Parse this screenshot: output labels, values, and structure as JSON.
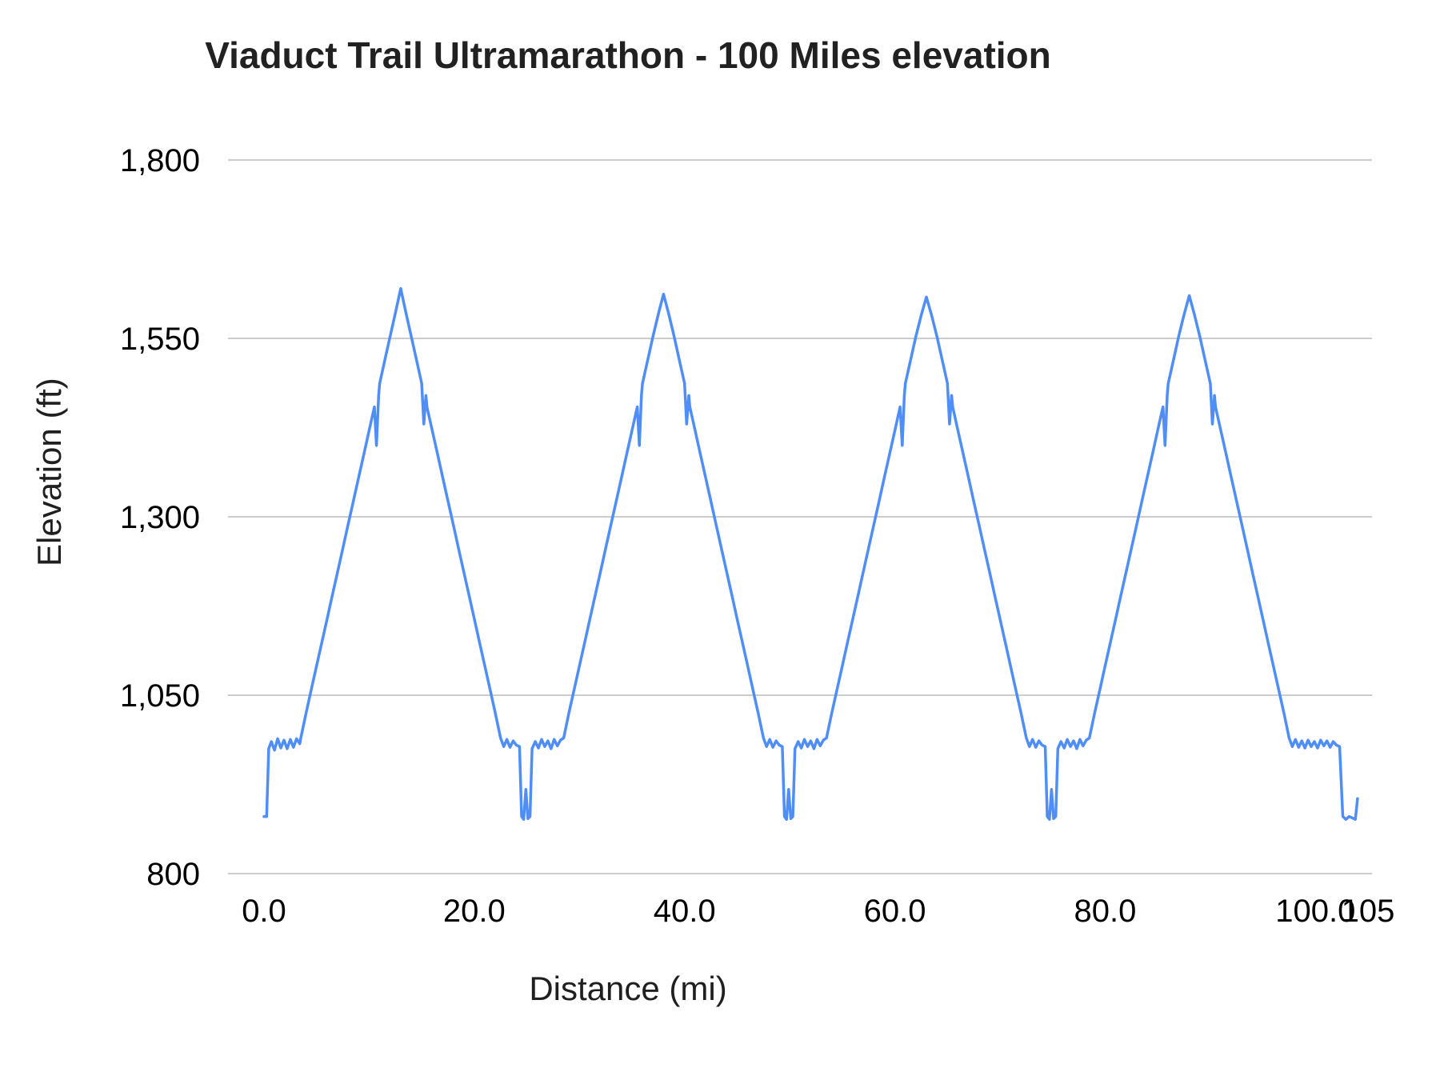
{
  "chart_data": {
    "type": "line",
    "title": "Viaduct Trail Ultramarathon - 100 Miles elevation",
    "xlabel": "Distance (mi)",
    "ylabel": "Elevation (ft)",
    "xlim": [
      0,
      105
    ],
    "ylim": [
      800,
      1800
    ],
    "grid": "horizontal",
    "legend": "none",
    "line_color": "#4f8ef7",
    "gridline_color": "#cccccc",
    "tick_color": "#000000",
    "x_ticks": [
      {
        "value": 0,
        "label": "0.0"
      },
      {
        "value": 20,
        "label": "20.0"
      },
      {
        "value": 40,
        "label": "40.0"
      },
      {
        "value": 60,
        "label": "60.0"
      },
      {
        "value": 80,
        "label": "80.0"
      },
      {
        "value": 100,
        "label": "100.0"
      },
      {
        "value": 105,
        "label": "105"
      }
    ],
    "y_ticks": [
      {
        "value": 800,
        "label": "800"
      },
      {
        "value": 1050,
        "label": "1,050"
      },
      {
        "value": 1300,
        "label": "1,300"
      },
      {
        "value": 1550,
        "label": "1,550"
      },
      {
        "value": 1800,
        "label": "1,800"
      }
    ],
    "series": [
      {
        "name": "Elevation",
        "points": [
          [
            0.0,
            880
          ],
          [
            0.25,
            880
          ],
          [
            0.45,
            975
          ],
          [
            0.7,
            985
          ],
          [
            1.0,
            973
          ],
          [
            1.3,
            989
          ],
          [
            1.6,
            976
          ],
          [
            1.9,
            987
          ],
          [
            2.2,
            975
          ],
          [
            2.5,
            988
          ],
          [
            2.8,
            977
          ],
          [
            3.1,
            989
          ],
          [
            3.4,
            982
          ],
          [
            3.5,
            990
          ],
          [
            4.0,
            1025
          ],
          [
            4.5,
            1058
          ],
          [
            5.0,
            1091
          ],
          [
            5.5,
            1124
          ],
          [
            6.0,
            1157
          ],
          [
            6.5,
            1190
          ],
          [
            7.0,
            1223
          ],
          [
            7.5,
            1256
          ],
          [
            8.0,
            1289
          ],
          [
            8.5,
            1322
          ],
          [
            9.0,
            1355
          ],
          [
            9.5,
            1388
          ],
          [
            10.0,
            1421
          ],
          [
            10.5,
            1454
          ],
          [
            10.7,
            1400
          ],
          [
            10.9,
            1470
          ],
          [
            11.0,
            1487
          ],
          [
            11.5,
            1520
          ],
          [
            12.0,
            1553
          ],
          [
            12.5,
            1586
          ],
          [
            13.0,
            1620
          ],
          [
            13.5,
            1586
          ],
          [
            14.0,
            1553
          ],
          [
            14.5,
            1520
          ],
          [
            15.0,
            1487
          ],
          [
            15.2,
            1430
          ],
          [
            15.4,
            1470
          ],
          [
            15.5,
            1454
          ],
          [
            16.0,
            1421
          ],
          [
            16.5,
            1388
          ],
          [
            17.0,
            1355
          ],
          [
            17.5,
            1322
          ],
          [
            18.0,
            1289
          ],
          [
            18.5,
            1256
          ],
          [
            19.0,
            1223
          ],
          [
            19.5,
            1190
          ],
          [
            20.0,
            1157
          ],
          [
            20.5,
            1124
          ],
          [
            21.0,
            1091
          ],
          [
            21.5,
            1058
          ],
          [
            22.0,
            1025
          ],
          [
            22.5,
            990
          ],
          [
            22.8,
            978
          ],
          [
            23.1,
            988
          ],
          [
            23.4,
            977
          ],
          [
            23.7,
            986
          ],
          [
            24.0,
            980
          ],
          [
            24.3,
            978
          ],
          [
            24.5,
            880
          ],
          [
            24.7,
            876
          ],
          [
            24.9,
            918
          ],
          [
            25.1,
            877
          ],
          [
            25.3,
            880
          ],
          [
            25.5,
            975
          ],
          [
            25.8,
            985
          ],
          [
            26.1,
            976
          ],
          [
            26.4,
            988
          ],
          [
            26.7,
            978
          ],
          [
            27.0,
            986
          ],
          [
            27.3,
            975
          ],
          [
            27.6,
            988
          ],
          [
            27.9,
            979
          ],
          [
            28.2,
            987
          ],
          [
            28.5,
            990
          ],
          [
            29.0,
            1025
          ],
          [
            29.5,
            1058
          ],
          [
            30.0,
            1091
          ],
          [
            30.5,
            1124
          ],
          [
            31.0,
            1157
          ],
          [
            31.5,
            1190
          ],
          [
            32.0,
            1223
          ],
          [
            32.5,
            1256
          ],
          [
            33.0,
            1289
          ],
          [
            33.5,
            1322
          ],
          [
            34.0,
            1355
          ],
          [
            34.5,
            1388
          ],
          [
            35.0,
            1421
          ],
          [
            35.5,
            1454
          ],
          [
            35.7,
            1400
          ],
          [
            35.9,
            1470
          ],
          [
            36.0,
            1487
          ],
          [
            36.5,
            1520
          ],
          [
            37.0,
            1553
          ],
          [
            37.5,
            1584
          ],
          [
            38.0,
            1612
          ],
          [
            38.5,
            1584
          ],
          [
            39.0,
            1553
          ],
          [
            39.5,
            1520
          ],
          [
            40.0,
            1487
          ],
          [
            40.2,
            1430
          ],
          [
            40.4,
            1470
          ],
          [
            40.5,
            1454
          ],
          [
            41.0,
            1421
          ],
          [
            41.5,
            1388
          ],
          [
            42.0,
            1355
          ],
          [
            42.5,
            1322
          ],
          [
            43.0,
            1289
          ],
          [
            43.5,
            1256
          ],
          [
            44.0,
            1223
          ],
          [
            44.5,
            1190
          ],
          [
            45.0,
            1157
          ],
          [
            45.5,
            1124
          ],
          [
            46.0,
            1091
          ],
          [
            46.5,
            1058
          ],
          [
            47.0,
            1025
          ],
          [
            47.5,
            990
          ],
          [
            47.8,
            978
          ],
          [
            48.1,
            988
          ],
          [
            48.4,
            977
          ],
          [
            48.7,
            986
          ],
          [
            49.0,
            980
          ],
          [
            49.3,
            978
          ],
          [
            49.5,
            880
          ],
          [
            49.7,
            876
          ],
          [
            49.9,
            918
          ],
          [
            50.1,
            877
          ],
          [
            50.3,
            880
          ],
          [
            50.5,
            975
          ],
          [
            50.8,
            985
          ],
          [
            51.1,
            976
          ],
          [
            51.4,
            988
          ],
          [
            51.7,
            978
          ],
          [
            52.0,
            986
          ],
          [
            52.3,
            975
          ],
          [
            52.6,
            988
          ],
          [
            52.9,
            979
          ],
          [
            53.2,
            987
          ],
          [
            53.5,
            990
          ],
          [
            54.0,
            1025
          ],
          [
            54.5,
            1058
          ],
          [
            55.0,
            1091
          ],
          [
            55.5,
            1124
          ],
          [
            56.0,
            1157
          ],
          [
            56.5,
            1190
          ],
          [
            57.0,
            1223
          ],
          [
            57.5,
            1256
          ],
          [
            58.0,
            1289
          ],
          [
            58.5,
            1322
          ],
          [
            59.0,
            1355
          ],
          [
            59.5,
            1388
          ],
          [
            60.0,
            1421
          ],
          [
            60.5,
            1454
          ],
          [
            60.7,
            1400
          ],
          [
            60.9,
            1470
          ],
          [
            61.0,
            1487
          ],
          [
            61.5,
            1520
          ],
          [
            62.0,
            1553
          ],
          [
            62.5,
            1582
          ],
          [
            63.0,
            1608
          ],
          [
            63.5,
            1582
          ],
          [
            64.0,
            1553
          ],
          [
            64.5,
            1520
          ],
          [
            65.0,
            1487
          ],
          [
            65.2,
            1430
          ],
          [
            65.4,
            1470
          ],
          [
            65.5,
            1454
          ],
          [
            66.0,
            1421
          ],
          [
            66.5,
            1388
          ],
          [
            67.0,
            1355
          ],
          [
            67.5,
            1322
          ],
          [
            68.0,
            1289
          ],
          [
            68.5,
            1256
          ],
          [
            69.0,
            1223
          ],
          [
            69.5,
            1190
          ],
          [
            70.0,
            1157
          ],
          [
            70.5,
            1124
          ],
          [
            71.0,
            1091
          ],
          [
            71.5,
            1058
          ],
          [
            72.0,
            1025
          ],
          [
            72.5,
            990
          ],
          [
            72.8,
            978
          ],
          [
            73.1,
            988
          ],
          [
            73.4,
            977
          ],
          [
            73.7,
            986
          ],
          [
            74.0,
            980
          ],
          [
            74.3,
            978
          ],
          [
            74.5,
            880
          ],
          [
            74.7,
            876
          ],
          [
            74.9,
            918
          ],
          [
            75.1,
            877
          ],
          [
            75.3,
            880
          ],
          [
            75.5,
            975
          ],
          [
            75.8,
            985
          ],
          [
            76.1,
            976
          ],
          [
            76.4,
            988
          ],
          [
            76.7,
            978
          ],
          [
            77.0,
            986
          ],
          [
            77.3,
            975
          ],
          [
            77.6,
            988
          ],
          [
            77.9,
            979
          ],
          [
            78.2,
            987
          ],
          [
            78.5,
            990
          ],
          [
            79.0,
            1025
          ],
          [
            79.5,
            1058
          ],
          [
            80.0,
            1091
          ],
          [
            80.5,
            1124
          ],
          [
            81.0,
            1157
          ],
          [
            81.5,
            1190
          ],
          [
            82.0,
            1223
          ],
          [
            82.5,
            1256
          ],
          [
            83.0,
            1289
          ],
          [
            83.5,
            1322
          ],
          [
            84.0,
            1355
          ],
          [
            84.5,
            1388
          ],
          [
            85.0,
            1421
          ],
          [
            85.5,
            1454
          ],
          [
            85.7,
            1400
          ],
          [
            85.9,
            1470
          ],
          [
            86.0,
            1487
          ],
          [
            86.5,
            1520
          ],
          [
            87.0,
            1553
          ],
          [
            87.5,
            1583
          ],
          [
            88.0,
            1610
          ],
          [
            88.5,
            1583
          ],
          [
            89.0,
            1553
          ],
          [
            89.5,
            1520
          ],
          [
            90.0,
            1487
          ],
          [
            90.2,
            1430
          ],
          [
            90.4,
            1470
          ],
          [
            90.5,
            1454
          ],
          [
            91.0,
            1421
          ],
          [
            91.5,
            1388
          ],
          [
            92.0,
            1355
          ],
          [
            92.5,
            1322
          ],
          [
            93.0,
            1289
          ],
          [
            93.5,
            1256
          ],
          [
            94.0,
            1223
          ],
          [
            94.5,
            1190
          ],
          [
            95.0,
            1157
          ],
          [
            95.5,
            1124
          ],
          [
            96.0,
            1091
          ],
          [
            96.5,
            1058
          ],
          [
            97.0,
            1025
          ],
          [
            97.5,
            990
          ],
          [
            97.8,
            978
          ],
          [
            98.1,
            988
          ],
          [
            98.4,
            977
          ],
          [
            98.7,
            986
          ],
          [
            99.0,
            976
          ],
          [
            99.3,
            987
          ],
          [
            99.6,
            978
          ],
          [
            99.9,
            985
          ],
          [
            100.2,
            976
          ],
          [
            100.5,
            987
          ],
          [
            100.8,
            979
          ],
          [
            101.1,
            986
          ],
          [
            101.4,
            977
          ],
          [
            101.7,
            985
          ],
          [
            102.0,
            980
          ],
          [
            102.3,
            978
          ],
          [
            102.6,
            880
          ],
          [
            102.9,
            876
          ],
          [
            103.2,
            880
          ],
          [
            103.5,
            878
          ],
          [
            103.8,
            876
          ],
          [
            104.0,
            905
          ]
        ]
      }
    ]
  }
}
